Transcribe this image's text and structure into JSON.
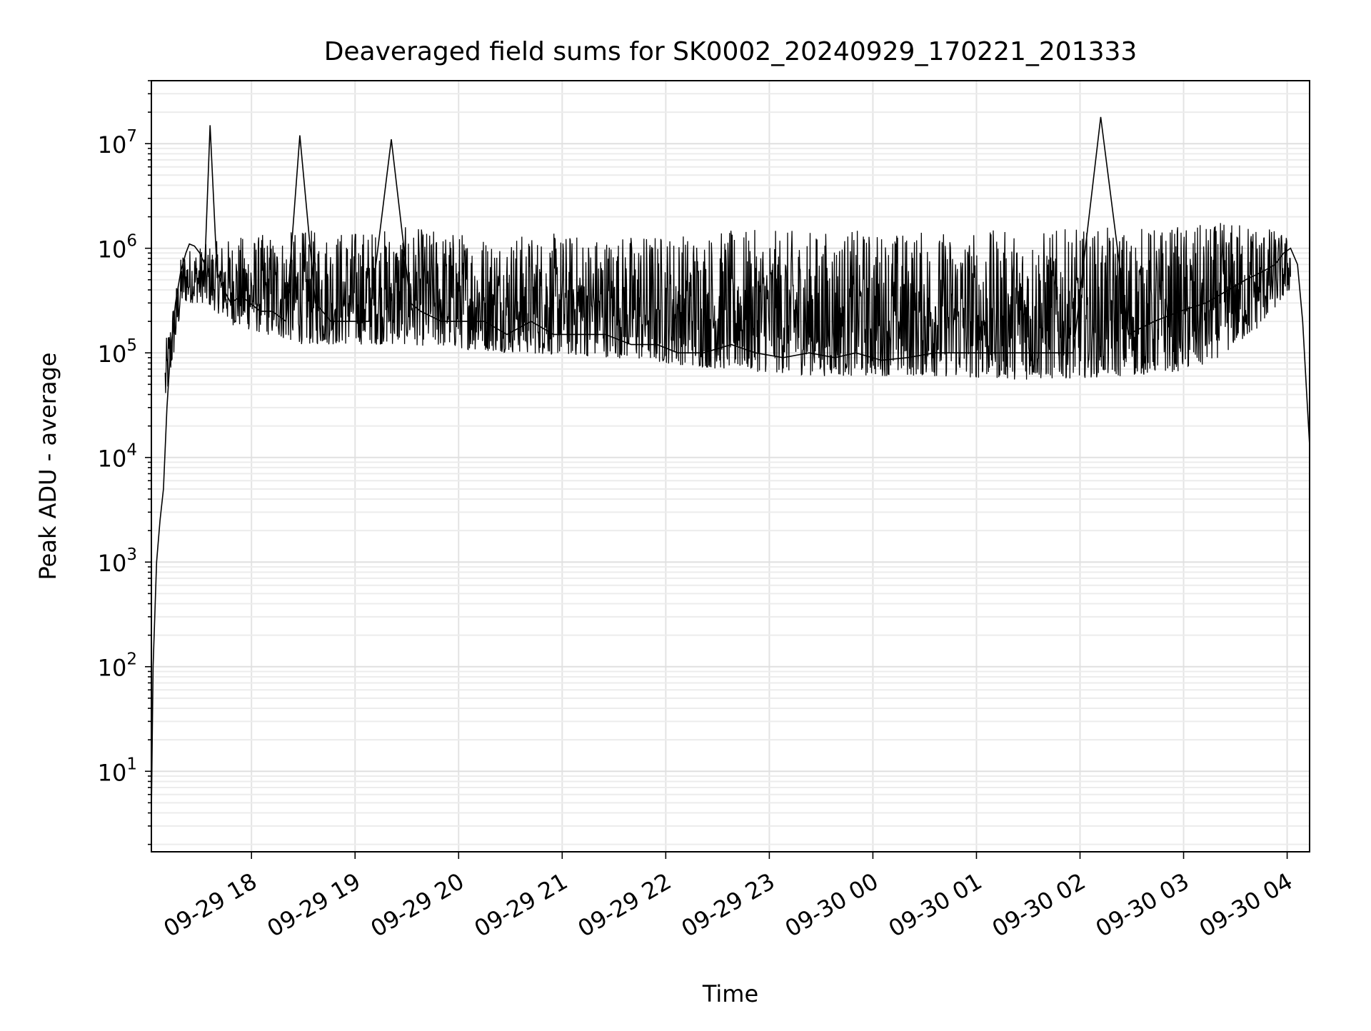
{
  "chart_data": {
    "type": "line",
    "title": "Deaveraged field sums for SK0002_20240929_170221_201333",
    "xlabel": "Time",
    "ylabel": "Peak ADU - average",
    "yscale": "log",
    "ylim": [
      1.7,
      40000000
    ],
    "xlim": [
      "2024-09-29 17:02",
      "2024-09-30 04:13"
    ],
    "grid": "major and minor",
    "x_ticks": [
      "09-29 18",
      "09-29 19",
      "09-29 20",
      "09-29 21",
      "09-29 22",
      "09-29 23",
      "09-30 00",
      "09-30 01",
      "09-30 02",
      "09-30 03",
      "09-30 04"
    ],
    "y_ticks": [
      {
        "base": "10",
        "exp": "1"
      },
      {
        "base": "10",
        "exp": "2"
      },
      {
        "base": "10",
        "exp": "3"
      },
      {
        "base": "10",
        "exp": "4"
      },
      {
        "base": "10",
        "exp": "5"
      },
      {
        "base": "10",
        "exp": "6"
      },
      {
        "base": "10",
        "exp": "7"
      }
    ],
    "series": [
      {
        "color": "#000000",
        "x": [
          "2024-09-29 17:02",
          "2024-09-29 17:03",
          "2024-09-29 17:05",
          "2024-09-29 17:07",
          "2024-09-29 17:09",
          "2024-09-29 17:11",
          "2024-09-29 17:13",
          "2024-09-29 17:16",
          "2024-09-29 17:19",
          "2024-09-29 17:22",
          "2024-09-29 17:24",
          "2024-09-29 17:27",
          "2024-09-29 17:30",
          "2024-09-29 17:33",
          "2024-09-29 17:36",
          "2024-09-29 17:40",
          "2024-09-29 17:44",
          "2024-09-29 17:48",
          "2024-09-29 17:54",
          "2024-09-29 18:05",
          "2024-09-29 18:12",
          "2024-09-29 18:20",
          "2024-09-29 18:28",
          "2024-09-29 18:37",
          "2024-09-29 18:46",
          "2024-09-29 18:58",
          "2024-09-29 19:08",
          "2024-09-29 19:21",
          "2024-09-29 19:32",
          "2024-09-29 19:38",
          "2024-09-29 19:50",
          "2024-09-29 20:03",
          "2024-09-29 20:15",
          "2024-09-29 20:28",
          "2024-09-29 20:42",
          "2024-09-29 20:55",
          "2024-09-29 21:10",
          "2024-09-29 21:25",
          "2024-09-29 21:40",
          "2024-09-29 21:55",
          "2024-09-29 22:07",
          "2024-09-29 22:22",
          "2024-09-29 22:38",
          "2024-09-29 22:52",
          "2024-09-29 23:08",
          "2024-09-29 23:23",
          "2024-09-29 23:38",
          "2024-09-29 23:50",
          "2024-09-30 00:05",
          "2024-09-30 00:20",
          "2024-09-30 00:36",
          "2024-09-30 00:52",
          "2024-09-30 01:08",
          "2024-09-30 01:24",
          "2024-09-30 01:40",
          "2024-09-30 01:56",
          "2024-09-30 02:12",
          "2024-09-30 02:28",
          "2024-09-30 02:43",
          "2024-09-30 02:58",
          "2024-09-30 03:13",
          "2024-09-30 03:26",
          "2024-09-30 03:36",
          "2024-09-30 03:46",
          "2024-09-30 03:53",
          "2024-09-30 03:58",
          "2024-09-30 04:02",
          "2024-09-30 04:06",
          "2024-09-30 04:09",
          "2024-09-30 04:11",
          "2024-09-30 04:13"
        ],
        "y": [
          4,
          100,
          1000,
          2500,
          5000,
          30000,
          100000,
          300000,
          600000,
          900000,
          1100000,
          1050000,
          900000,
          700000,
          15000000,
          600000,
          400000,
          300000,
          350000,
          250000,
          250000,
          200000,
          12000000,
          300000,
          200000,
          200000,
          200000,
          11000000,
          300000,
          250000,
          200000,
          200000,
          200000,
          150000,
          200000,
          150000,
          150000,
          150000,
          120000,
          120000,
          100000,
          100000,
          120000,
          100000,
          90000,
          100000,
          90000,
          100000,
          85000,
          90000,
          100000,
          100000,
          100000,
          100000,
          100000,
          100000,
          18000000,
          150000,
          200000,
          250000,
          300000,
          400000,
          500000,
          600000,
          700000,
          900000,
          1000000,
          700000,
          200000,
          50000,
          13000
        ]
      }
    ],
    "envelope": {
      "x": [
        "2024-09-29 17:10",
        "2024-09-29 17:20",
        "2024-09-29 17:33",
        "2024-09-29 17:50",
        "2024-09-29 18:30",
        "2024-09-29 19:30",
        "2024-09-29 20:30",
        "2024-09-29 21:30",
        "2024-09-29 22:30",
        "2024-09-29 23:30",
        "2024-09-30 00:30",
        "2024-09-30 01:30",
        "2024-09-30 02:30",
        "2024-09-30 03:10",
        "2024-09-30 03:40",
        "2024-09-30 04:02"
      ],
      "low": [
        30000,
        300000,
        300000,
        180000,
        120000,
        120000,
        100000,
        90000,
        70000,
        60000,
        60000,
        55000,
        60000,
        70000,
        150000,
        400000
      ],
      "high": [
        120000,
        1000000,
        1100000,
        1300000,
        1500000,
        1600000,
        1400000,
        1400000,
        1500000,
        1500000,
        1500000,
        1500000,
        1600000,
        1700000,
        1900000,
        1300000
      ]
    }
  }
}
